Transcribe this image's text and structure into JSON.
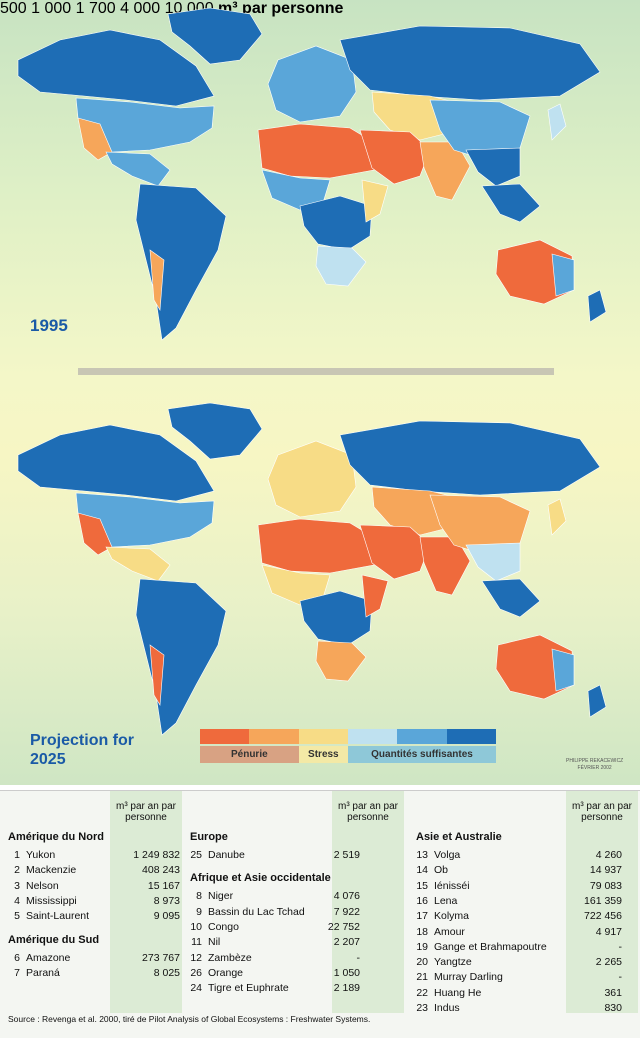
{
  "titles": {
    "year1": "1995",
    "year2": "Projection for 2025"
  },
  "legend": {
    "scale": [
      "500",
      "1 000",
      "1 700",
      "4 000",
      "10 000"
    ],
    "unit": "m³ par personne",
    "colors": [
      "#ef6a3c",
      "#f6a65a",
      "#f7dc86",
      "#bfe1f0",
      "#5aa6d9",
      "#1e6db5"
    ],
    "categories": [
      {
        "label": "Pénurie",
        "color": "#d8a283",
        "span": 2
      },
      {
        "label": "Stress",
        "color": "#f3e9a6",
        "span": 1
      },
      {
        "label": "Quantités suffisantes",
        "color": "#8ec8d8",
        "span": 3
      }
    ]
  },
  "credit": {
    "author": "PHILIPPE REKACEWICZ",
    "date": "FÉVRIER 2002"
  },
  "table": {
    "column_header": "m³ par an par personne",
    "columns": [
      {
        "groups": [
          {
            "name": "Amérique du Nord",
            "rows": [
              {
                "n": "1",
                "name": "Yukon",
                "value": "1 249 832"
              },
              {
                "n": "2",
                "name": "Mackenzie",
                "value": "408 243"
              },
              {
                "n": "3",
                "name": "Nelson",
                "value": "15 167"
              },
              {
                "n": "4",
                "name": "Mississippi",
                "value": "8 973"
              },
              {
                "n": "5",
                "name": "Saint-Laurent",
                "value": "9 095"
              }
            ]
          },
          {
            "name": "Amérique du Sud",
            "rows": [
              {
                "n": "6",
                "name": "Amazone",
                "value": "273 767"
              },
              {
                "n": "7",
                "name": "Paraná",
                "value": "8 025"
              }
            ]
          }
        ]
      },
      {
        "groups": [
          {
            "name": "Europe",
            "rows": [
              {
                "n": "25",
                "name": "Danube",
                "value": "2 519"
              }
            ]
          },
          {
            "name": "Afrique et Asie occidentale",
            "rows": [
              {
                "n": "8",
                "name": "Niger",
                "value": "4 076"
              },
              {
                "n": "9",
                "name": "Bassin du Lac Tchad",
                "value": "7 922"
              },
              {
                "n": "10",
                "name": "Congo",
                "value": "22 752"
              },
              {
                "n": "11",
                "name": "Nil",
                "value": "2 207"
              },
              {
                "n": "12",
                "name": "Zambèze",
                "value": "-"
              },
              {
                "n": "26",
                "name": "Orange",
                "value": "1 050"
              },
              {
                "n": "24",
                "name": "Tigre et Euphrate",
                "value": "2 189"
              }
            ]
          }
        ]
      },
      {
        "groups": [
          {
            "name": "Asie et Australie",
            "rows": [
              {
                "n": "13",
                "name": "Volga",
                "value": "4 260"
              },
              {
                "n": "14",
                "name": "Ob",
                "value": "14 937"
              },
              {
                "n": "15",
                "name": "Iénisséi",
                "value": "79 083"
              },
              {
                "n": "16",
                "name": "Lena",
                "value": "161 359"
              },
              {
                "n": "17",
                "name": "Kolyma",
                "value": "722 456"
              },
              {
                "n": "18",
                "name": "Amour",
                "value": "4 917"
              },
              {
                "n": "19",
                "name": "Gange et Brahmapoutre",
                "value": "-"
              },
              {
                "n": "20",
                "name": "Yangtze",
                "value": "2 265"
              },
              {
                "n": "21",
                "name": "Murray Darling",
                "value": "-"
              },
              {
                "n": "22",
                "name": "Huang He",
                "value": "361"
              },
              {
                "n": "23",
                "name": "Indus",
                "value": "830"
              }
            ]
          }
        ]
      }
    ],
    "source": "Source : Revenga et al. 2000, tiré de Pilot Analysis of Global Ecosystems : Freshwater Systems."
  }
}
